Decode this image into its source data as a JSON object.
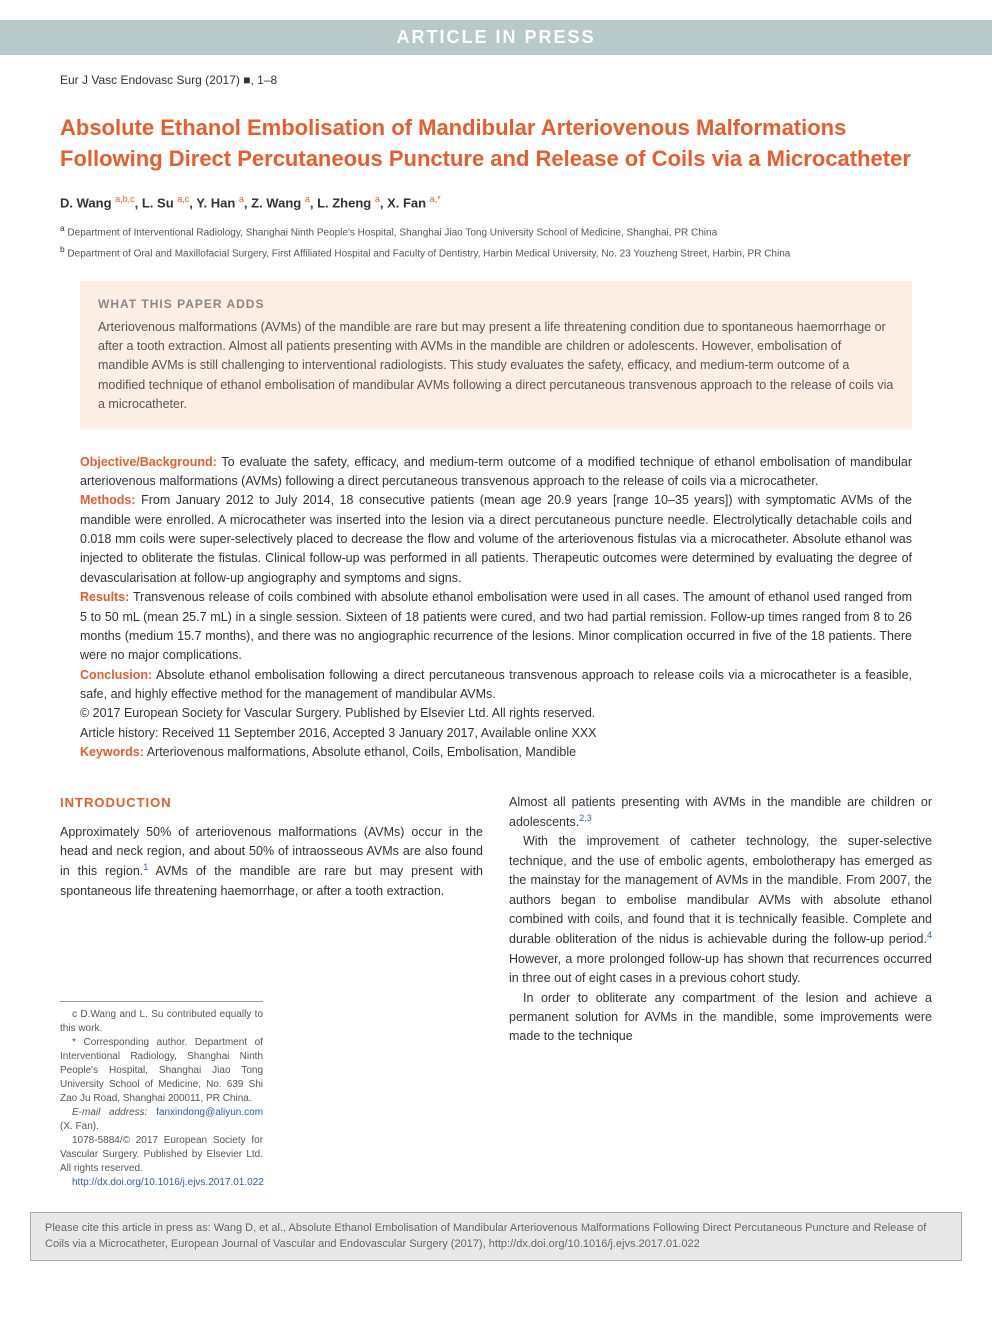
{
  "banner": "ARTICLE IN PRESS",
  "journal_ref": "Eur J Vasc Endovasc Surg (2017) ■, 1–8",
  "title": "Absolute Ethanol Embolisation of Mandibular Arteriovenous Malformations Following Direct Percutaneous Puncture and Release of Coils via a Microcatheter",
  "authors_html": "D. Wang <sup>a,b,c</sup>, L. Su <sup>a,c</sup>, Y. Han <sup>a</sup>, Z. Wang <sup>a</sup>, L. Zheng <sup>a</sup>, X. Fan <sup>a,*</sup>",
  "affiliations": [
    "a Department of Interventional Radiology, Shanghai Ninth People's Hospital, Shanghai Jiao Tong University School of Medicine, Shanghai, PR China",
    "b Department of Oral and Maxillofacial Surgery, First Affiliated Hospital and Faculty of Dentistry, Harbin Medical University, No. 23 Youzheng Street, Harbin, PR China"
  ],
  "callout": {
    "heading": "WHAT THIS PAPER ADDS",
    "body": "Arteriovenous malformations (AVMs) of the mandible are rare but may present a life threatening condition due to spontaneous haemorrhage or after a tooth extraction. Almost all patients presenting with AVMs in the mandible are children or adolescents. However, embolisation of mandible AVMs is still challenging to interventional radiologists. This study evaluates the safety, efficacy, and medium-term outcome of a modified technique of ethanol embolisation of mandibular AVMs following a direct percutaneous transvenous approach to the release of coils via a microcatheter."
  },
  "abstract": {
    "objective_label": "Objective/Background:",
    "objective": " To evaluate the safety, efficacy, and medium-term outcome of a modified technique of ethanol embolisation of mandibular arteriovenous malformations (AVMs) following a direct percutaneous transvenous approach to the release of coils via a microcatheter.",
    "methods_label": "Methods:",
    "methods": " From January 2012 to July 2014, 18 consecutive patients (mean age 20.9 years [range 10–35 years]) with symptomatic AVMs of the mandible were enrolled. A microcatheter was inserted into the lesion via a direct percutaneous puncture needle. Electrolytically detachable coils and 0.018 mm coils were super-selectively placed to decrease the flow and volume of the arteriovenous fistulas via a microcatheter. Absolute ethanol was injected to obliterate the fistulas. Clinical follow-up was performed in all patients. Therapeutic outcomes were determined by evaluating the degree of devascularisation at follow-up angiography and symptoms and signs.",
    "results_label": "Results:",
    "results": " Transvenous release of coils combined with absolute ethanol embolisation were used in all cases. The amount of ethanol used ranged from 5 to 50 mL (mean 25.7 mL) in a single session. Sixteen of 18 patients were cured, and two had partial remission. Follow-up times ranged from 8 to 26 months (medium 15.7 months), and there was no angiographic recurrence of the lesions. Minor complication occurred in five of the 18 patients. There were no major complications.",
    "conclusion_label": "Conclusion:",
    "conclusion": " Absolute ethanol embolisation following a direct percutaneous transvenous approach to release coils via a microcatheter is a feasible, safe, and highly effective method for the management of mandibular AVMs.",
    "copyright": "© 2017 European Society for Vascular Surgery. Published by Elsevier Ltd. All rights reserved.",
    "history": "Article history: Received 11 September 2016, Accepted 3 January 2017, Available online XXX",
    "keywords_label": "Keywords:",
    "keywords": " Arteriovenous malformations, Absolute ethanol, Coils, Embolisation, Mandible"
  },
  "intro": {
    "heading": "INTRODUCTION",
    "left_p1": "Approximately 50% of arteriovenous malformations (AVMs) occur in the head and neck region, and about 50% of intraosseous AVMs are also found in this region.",
    "left_ref1": "1",
    "left_p1b": " AVMs of the mandible are rare but may present with spontaneous life threatening haemorrhage, or after a tooth extraction.",
    "right_p1": "Almost all patients presenting with AVMs in the mandible are children or adolescents.",
    "right_ref1": "2,3",
    "right_p2": "With the improvement of catheter technology, the super-selective technique, and the use of embolic agents, embolotherapy has emerged as the mainstay for the management of AVMs in the mandible. From 2007, the authors began to embolise mandibular AVMs with absolute ethanol combined with coils, and found that it is technically feasible. Complete and durable obliteration of the nidus is achievable during the follow-up period.",
    "right_ref2": "4",
    "right_p2b": " However, a more prolonged follow-up has shown that recurrences occurred in three out of eight cases in a previous cohort study.",
    "right_p3": "In order to obliterate any compartment of the lesion and achieve a permanent solution for AVMs in the mandible, some improvements were made to the technique"
  },
  "footnotes": {
    "fn_c": "c D.Wang and L. Su contributed equally to this work.",
    "fn_star": "* Corresponding author. Department of Interventional Radiology, Shanghai Ninth People's Hospital, Shanghai Jiao Tong University School of Medicine, No. 639 Shi Zao Ju Road, Shanghai 200011, PR China.",
    "email_label": "E-mail address: ",
    "email": "fanxindong@aliyun.com",
    "email_suffix": " (X. Fan).",
    "issn": "1078-5884/© 2017 European Society for Vascular Surgery. Published by Elsevier Ltd. All rights reserved.",
    "doi": "http://dx.doi.org/10.1016/j.ejvs.2017.01.022"
  },
  "citation_box": "Please cite this article in press as: Wang D, et al., Absolute Ethanol Embolisation of Mandibular Arteriovenous Malformations Following Direct Percutaneous Puncture and Release of Coils via a Microcatheter, European Journal of Vascular and Endovascular Surgery (2017), http://dx.doi.org/10.1016/j.ejvs.2017.01.022",
  "colors": {
    "accent": "#e85d2d",
    "banner_bg": "#b8c9c9",
    "callout_bg": "#fdeee4",
    "link": "#2a5db0",
    "citation_bg": "#e8e8e8"
  }
}
